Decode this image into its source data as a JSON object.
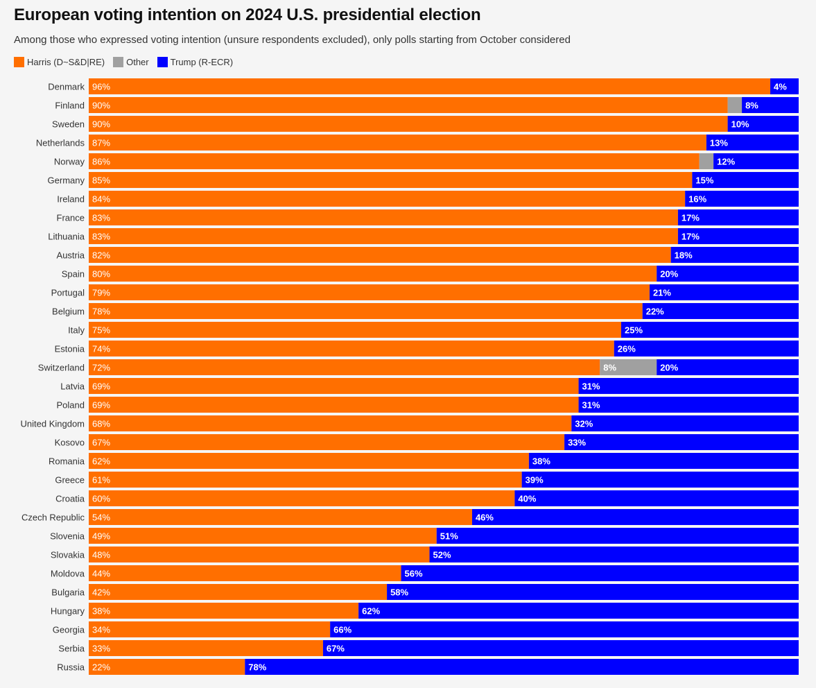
{
  "title": "European voting intention on 2024 U.S. presidential election",
  "subtitle": "Among those who expressed voting intention (unsure respondents excluded), only polls starting from October considered",
  "legend": [
    {
      "label": "Harris (D~S&D|RE)",
      "color": "#ff6f00"
    },
    {
      "label": "Other",
      "color": "#a0a0a0"
    },
    {
      "label": "Trump (R-ECR)",
      "color": "#0000ff"
    }
  ],
  "chart_data": {
    "type": "bar",
    "orientation": "horizontal",
    "stacked": true,
    "percent_scale": true,
    "grid": false,
    "legend_position": "top-left",
    "label_unit": "%",
    "categories": [
      "Denmark",
      "Finland",
      "Sweden",
      "Netherlands",
      "Norway",
      "Germany",
      "Ireland",
      "France",
      "Lithuania",
      "Austria",
      "Spain",
      "Portugal",
      "Belgium",
      "Italy",
      "Estonia",
      "Switzerland",
      "Latvia",
      "Poland",
      "United Kingdom",
      "Kosovo",
      "Romania",
      "Greece",
      "Croatia",
      "Czech Republic",
      "Slovenia",
      "Slovakia",
      "Moldova",
      "Bulgaria",
      "Hungary",
      "Georgia",
      "Serbia",
      "Russia"
    ],
    "series": [
      {
        "name": "Harris (D~S&D|RE)",
        "color": "#ff6f00",
        "values": [
          96,
          90,
          90,
          87,
          86,
          85,
          84,
          83,
          83,
          82,
          80,
          79,
          78,
          75,
          74,
          72,
          69,
          69,
          68,
          67,
          62,
          61,
          60,
          54,
          49,
          48,
          44,
          42,
          38,
          34,
          33,
          22
        ],
        "labeled": [
          true,
          true,
          true,
          true,
          true,
          true,
          true,
          true,
          true,
          true,
          true,
          true,
          true,
          true,
          true,
          true,
          true,
          true,
          true,
          true,
          true,
          true,
          true,
          true,
          true,
          true,
          true,
          true,
          true,
          true,
          true,
          true
        ]
      },
      {
        "name": "Other",
        "color": "#a0a0a0",
        "values": [
          0,
          2,
          0,
          0,
          2,
          0,
          0,
          0,
          0,
          0,
          0,
          0,
          0,
          0,
          0,
          8,
          0,
          0,
          0,
          0,
          0,
          0,
          0,
          0,
          0,
          0,
          0,
          0,
          0,
          0,
          0,
          0
        ],
        "labeled": [
          false,
          false,
          false,
          false,
          false,
          false,
          false,
          false,
          false,
          false,
          false,
          false,
          false,
          false,
          false,
          true,
          false,
          false,
          false,
          false,
          false,
          false,
          false,
          false,
          false,
          false,
          false,
          false,
          false,
          false,
          false,
          false
        ]
      },
      {
        "name": "Trump (R-ECR)",
        "color": "#0000ff",
        "values": [
          4,
          8,
          10,
          13,
          12,
          15,
          16,
          17,
          17,
          18,
          20,
          21,
          22,
          25,
          26,
          20,
          31,
          31,
          32,
          33,
          38,
          39,
          40,
          46,
          51,
          52,
          56,
          58,
          62,
          66,
          67,
          78
        ],
        "labeled": [
          true,
          true,
          true,
          true,
          true,
          true,
          true,
          true,
          true,
          true,
          true,
          true,
          true,
          true,
          true,
          true,
          true,
          true,
          true,
          true,
          true,
          true,
          true,
          true,
          true,
          true,
          true,
          true,
          true,
          true,
          true,
          true
        ]
      }
    ]
  }
}
